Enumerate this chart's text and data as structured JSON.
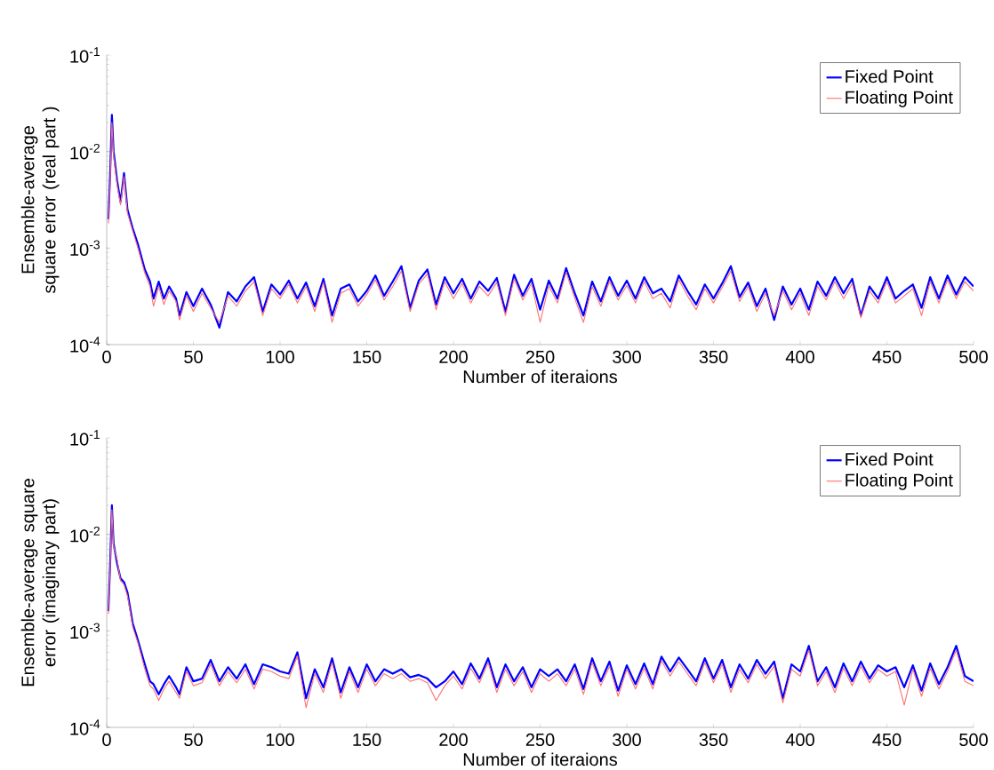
{
  "chart_data": [
    {
      "type": "line",
      "xlabel": "Number of iteraions",
      "ylabel": "Ensemble-average square error (real part )",
      "log": "y",
      "legend": "top right",
      "xlim": [
        0,
        500
      ],
      "ylim": [
        0.0001,
        0.1
      ],
      "xticks": [
        0,
        50,
        100,
        150,
        200,
        250,
        300,
        350,
        400,
        450,
        500
      ],
      "yticks": [
        {
          "value": 0.0001,
          "label": "10$^{-4}$"
        },
        {
          "value": 0.001,
          "label": "10$^{-3}$"
        },
        {
          "value": 0.01,
          "label": "10$^{-2}$"
        },
        {
          "value": 0.1,
          "label": "10$^{-1}$"
        }
      ],
      "x": [
        1,
        2,
        3,
        4,
        6,
        8,
        10,
        12,
        15,
        18,
        22,
        25,
        27,
        30,
        33,
        36,
        40,
        42,
        46,
        50,
        55,
        60,
        65,
        70,
        75,
        80,
        85,
        90,
        95,
        100,
        105,
        110,
        115,
        120,
        125,
        130,
        135,
        140,
        145,
        150,
        155,
        160,
        165,
        170,
        175,
        180,
        185,
        190,
        195,
        200,
        205,
        210,
        215,
        220,
        225,
        230,
        235,
        240,
        245,
        250,
        255,
        260,
        265,
        270,
        275,
        280,
        285,
        290,
        295,
        300,
        305,
        310,
        315,
        320,
        325,
        330,
        335,
        340,
        345,
        350,
        355,
        360,
        365,
        370,
        375,
        380,
        385,
        390,
        395,
        400,
        405,
        410,
        415,
        420,
        425,
        430,
        435,
        440,
        445,
        450,
        455,
        460,
        465,
        470,
        475,
        480,
        485,
        490,
        495,
        500
      ],
      "series": [
        {
          "name": "Fixed Point",
          "color": "#0000ff",
          "values": [
            0.002,
            0.006,
            0.024,
            0.01,
            0.005,
            0.003,
            0.006,
            0.0025,
            0.0016,
            0.0011,
            0.0006,
            0.00045,
            0.0003,
            0.00045,
            0.0003,
            0.0004,
            0.0003,
            0.0002,
            0.00035,
            0.00025,
            0.00038,
            0.00026,
            0.00015,
            0.00035,
            0.00028,
            0.0004,
            0.0005,
            0.00022,
            0.00042,
            0.00033,
            0.00046,
            0.0003,
            0.00044,
            0.00025,
            0.00048,
            0.0002,
            0.00038,
            0.00042,
            0.00028,
            0.00036,
            0.00052,
            0.00032,
            0.00045,
            0.00065,
            0.00024,
            0.00046,
            0.0006,
            0.00026,
            0.0005,
            0.00034,
            0.00048,
            0.0003,
            0.00045,
            0.00036,
            0.00049,
            0.00022,
            0.00053,
            0.00032,
            0.00048,
            0.00023,
            0.00046,
            0.0003,
            0.00062,
            0.00034,
            0.0002,
            0.00045,
            0.00028,
            0.0005,
            0.00032,
            0.00046,
            0.0003,
            0.0005,
            0.00034,
            0.00038,
            0.00028,
            0.00052,
            0.00036,
            0.00026,
            0.00042,
            0.0003,
            0.00043,
            0.00065,
            0.00031,
            0.00044,
            0.00025,
            0.00038,
            0.00018,
            0.0004,
            0.00026,
            0.00038,
            0.00023,
            0.00045,
            0.00032,
            0.0005,
            0.00034,
            0.00048,
            0.0002,
            0.0004,
            0.0003,
            0.0005,
            0.0003,
            0.00036,
            0.00042,
            0.00024,
            0.0005,
            0.0003,
            0.00052,
            0.00033,
            0.0005,
            0.0004
          ]
        },
        {
          "name": "Floating Point",
          "color": "#ff7070",
          "values": [
            0.0018,
            0.005,
            0.02,
            0.009,
            0.0045,
            0.0028,
            0.0055,
            0.0023,
            0.0015,
            0.001,
            0.00055,
            0.0004,
            0.00025,
            0.0004,
            0.00026,
            0.00036,
            0.00028,
            0.00018,
            0.00032,
            0.00022,
            0.00034,
            0.00024,
            0.00017,
            0.00032,
            0.00025,
            0.00036,
            0.00045,
            0.0002,
            0.00038,
            0.0003,
            0.00042,
            0.00027,
            0.0004,
            0.00022,
            0.00044,
            0.00017,
            0.00034,
            0.00038,
            0.00025,
            0.00033,
            0.00047,
            0.00029,
            0.0004,
            0.00058,
            0.00022,
            0.00042,
            0.00054,
            0.00023,
            0.00045,
            0.0003,
            0.00043,
            0.00027,
            0.0004,
            0.00032,
            0.00044,
            0.0002,
            0.00048,
            0.00029,
            0.00043,
            0.00017,
            0.00041,
            0.00027,
            0.00056,
            0.0003,
            0.00017,
            0.0004,
            0.00025,
            0.00045,
            0.00029,
            0.00041,
            0.00027,
            0.00045,
            0.0003,
            0.00034,
            0.00024,
            0.00047,
            0.00032,
            0.00023,
            0.00038,
            0.00027,
            0.00039,
            0.00058,
            0.00028,
            0.0004,
            0.00022,
            0.00034,
            0.0002,
            0.00036,
            0.00023,
            0.00034,
            0.0002,
            0.0004,
            0.00029,
            0.00045,
            0.0003,
            0.00043,
            0.00019,
            0.00036,
            0.00027,
            0.00045,
            0.00027,
            0.00032,
            0.00038,
            0.0002,
            0.00045,
            0.00027,
            0.00047,
            0.0003,
            0.00045,
            0.00036
          ]
        }
      ]
    },
    {
      "type": "line",
      "xlabel": "Number of iteraions",
      "ylabel": "Ensemble-average square error (imaginary part)",
      "log": "y",
      "legend": "top right",
      "xlim": [
        0,
        500
      ],
      "ylim": [
        0.0001,
        0.1
      ],
      "xticks": [
        0,
        50,
        100,
        150,
        200,
        250,
        300,
        350,
        400,
        450,
        500
      ],
      "yticks": [
        {
          "value": 0.0001,
          "label": "10$^{-4}$"
        },
        {
          "value": 0.001,
          "label": "10$^{-3}$"
        },
        {
          "value": 0.01,
          "label": "10$^{-2}$"
        },
        {
          "value": 0.1,
          "label": "10$^{-1}$"
        }
      ],
      "x": [
        1,
        2,
        3,
        4,
        6,
        8,
        10,
        12,
        15,
        18,
        22,
        25,
        27,
        30,
        33,
        36,
        40,
        42,
        46,
        50,
        55,
        60,
        65,
        70,
        75,
        80,
        85,
        90,
        95,
        100,
        105,
        110,
        115,
        120,
        125,
        130,
        135,
        140,
        145,
        150,
        155,
        160,
        165,
        170,
        175,
        180,
        185,
        190,
        195,
        200,
        205,
        210,
        215,
        220,
        225,
        230,
        235,
        240,
        245,
        250,
        255,
        260,
        265,
        270,
        275,
        280,
        285,
        290,
        295,
        300,
        305,
        310,
        315,
        320,
        325,
        330,
        335,
        340,
        345,
        350,
        355,
        360,
        365,
        370,
        375,
        380,
        385,
        390,
        395,
        400,
        405,
        410,
        415,
        420,
        425,
        430,
        435,
        440,
        445,
        450,
        455,
        460,
        465,
        470,
        475,
        480,
        485,
        490,
        495,
        500
      ],
      "series": [
        {
          "name": "Fixed Point",
          "color": "#0000ff",
          "values": [
            0.0016,
            0.005,
            0.02,
            0.008,
            0.005,
            0.0035,
            0.0032,
            0.0025,
            0.0012,
            0.0008,
            0.00045,
            0.0003,
            0.00028,
            0.00022,
            0.00028,
            0.00034,
            0.00026,
            0.00022,
            0.00042,
            0.0003,
            0.00032,
            0.0005,
            0.0003,
            0.00042,
            0.00032,
            0.00045,
            0.00028,
            0.00045,
            0.00042,
            0.00038,
            0.00036,
            0.0006,
            0.0002,
            0.0004,
            0.00026,
            0.00052,
            0.00023,
            0.00042,
            0.00026,
            0.00045,
            0.0003,
            0.0004,
            0.00036,
            0.0004,
            0.00033,
            0.00035,
            0.00032,
            0.00026,
            0.0003,
            0.00038,
            0.00028,
            0.00046,
            0.00032,
            0.00052,
            0.00026,
            0.00045,
            0.0003,
            0.00042,
            0.00026,
            0.0004,
            0.00034,
            0.0004,
            0.0003,
            0.00045,
            0.00025,
            0.00052,
            0.0003,
            0.00048,
            0.00024,
            0.00044,
            0.00028,
            0.00046,
            0.00028,
            0.00054,
            0.00038,
            0.00053,
            0.0004,
            0.0003,
            0.00052,
            0.00032,
            0.0005,
            0.00026,
            0.00045,
            0.00032,
            0.0005,
            0.00036,
            0.00048,
            0.0002,
            0.00045,
            0.00038,
            0.0007,
            0.0003,
            0.00042,
            0.00026,
            0.00046,
            0.0003,
            0.00048,
            0.00032,
            0.00044,
            0.00038,
            0.00042,
            0.00026,
            0.00044,
            0.00024,
            0.00046,
            0.00028,
            0.00042,
            0.0007,
            0.00034,
            0.0003
          ]
        },
        {
          "name": "Floating Point",
          "color": "#ff7070",
          "values": [
            0.0015,
            0.0045,
            0.018,
            0.0075,
            0.0055,
            0.0033,
            0.003,
            0.0023,
            0.0011,
            0.00075,
            0.0004,
            0.00027,
            0.00025,
            0.00019,
            0.00025,
            0.0003,
            0.00023,
            0.0002,
            0.00038,
            0.00027,
            0.00029,
            0.00045,
            0.00027,
            0.00038,
            0.00029,
            0.0004,
            0.00025,
            0.0004,
            0.00038,
            0.00034,
            0.00032,
            0.00055,
            0.00016,
            0.00036,
            0.00023,
            0.00047,
            0.0002,
            0.00038,
            0.00023,
            0.0004,
            0.00027,
            0.00036,
            0.00032,
            0.00036,
            0.0003,
            0.00032,
            0.00029,
            0.00019,
            0.00027,
            0.00034,
            0.00025,
            0.00041,
            0.00029,
            0.00047,
            0.00023,
            0.0004,
            0.00027,
            0.00038,
            0.00023,
            0.00036,
            0.0003,
            0.00036,
            0.00027,
            0.0004,
            0.00022,
            0.00047,
            0.00027,
            0.00043,
            0.00021,
            0.0004,
            0.00025,
            0.00041,
            0.00025,
            0.00049,
            0.00034,
            0.00048,
            0.00036,
            0.00027,
            0.00047,
            0.00029,
            0.00045,
            0.00023,
            0.0004,
            0.00029,
            0.00045,
            0.00032,
            0.00043,
            0.00018,
            0.0004,
            0.00034,
            0.00063,
            0.00027,
            0.00038,
            0.00023,
            0.00041,
            0.00027,
            0.00043,
            0.00029,
            0.0004,
            0.00034,
            0.00038,
            0.00017,
            0.0004,
            0.00021,
            0.00041,
            0.00025,
            0.00038,
            0.00063,
            0.0003,
            0.00027
          ]
        }
      ]
    }
  ]
}
